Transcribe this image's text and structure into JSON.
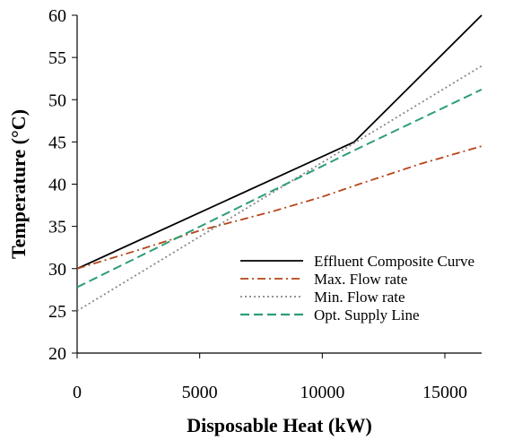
{
  "chart_data": {
    "type": "line",
    "title": "",
    "xlabel": "Disposable Heat (kW)",
    "ylabel": "Temperature (°C)",
    "xlim": [
      0,
      16500
    ],
    "ylim": [
      20,
      60
    ],
    "xticks": [
      0,
      5000,
      10000,
      15000
    ],
    "yticks": [
      20,
      25,
      30,
      35,
      40,
      45,
      50,
      55,
      60
    ],
    "grid": false,
    "legend_position": "lower-right",
    "series": [
      {
        "name": "Effluent Composite Curve",
        "color": "#000000",
        "style": "solid",
        "x": [
          0,
          11300,
          16500
        ],
        "y": [
          30,
          45,
          60
        ]
      },
      {
        "name": "Max. Flow rate",
        "color": "#b5441a",
        "style": "dashdot",
        "x": [
          0,
          2500,
          5000,
          8000,
          10000,
          11500,
          14000,
          16500
        ],
        "y": [
          30,
          32.2,
          34.5,
          36.8,
          38.5,
          40,
          42.4,
          44.5
        ]
      },
      {
        "name": "Min. Flow rate",
        "color": "#888888",
        "style": "dotted",
        "x": [
          0,
          16500
        ],
        "y": [
          25,
          54
        ]
      },
      {
        "name": "Opt. Supply Line",
        "color": "#2e9e73",
        "style": "dashed",
        "x": [
          0,
          11300,
          16500
        ],
        "y": [
          27.8,
          44,
          51.2
        ]
      }
    ]
  }
}
